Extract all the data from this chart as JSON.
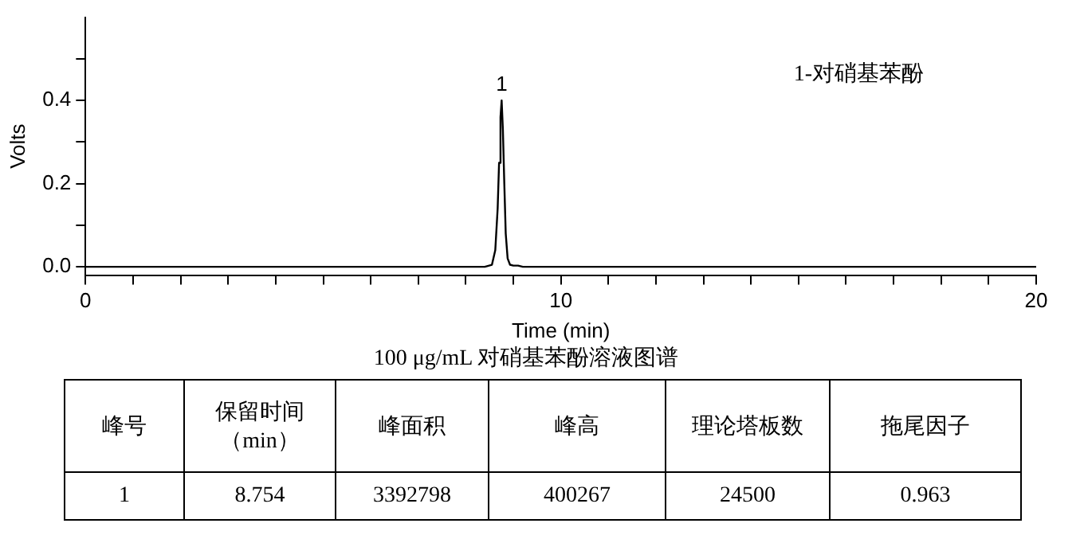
{
  "chart_data": {
    "type": "line",
    "xlabel": "Time (min)",
    "ylabel": "Volts",
    "x": [
      0,
      2,
      4,
      6,
      8,
      8.4,
      8.55,
      8.62,
      8.67,
      8.7,
      8.73,
      8.754,
      8.78,
      8.81,
      8.84,
      8.88,
      8.93,
      9.0,
      9.1,
      9.2,
      12,
      16,
      20
    ],
    "series": [
      {
        "color": "#000000",
        "values": [
          0,
          0,
          0,
          0,
          0,
          0,
          0.005,
          0.04,
          0.14,
          0.25,
          0.36,
          0.4,
          0.33,
          0.2,
          0.08,
          0.02,
          0.005,
          0.003,
          0.003,
          0,
          0,
          0,
          0
        ]
      }
    ],
    "xlim": [
      0,
      20
    ],
    "xticks": [
      0,
      {
        "value": 1,
        "label": null
      },
      {
        "value": 2,
        "label": null
      },
      {
        "value": 3,
        "label": null
      },
      {
        "value": 4,
        "label": null
      },
      {
        "value": 5,
        "label": null
      },
      {
        "value": 6,
        "label": null
      },
      {
        "value": 7,
        "label": null
      },
      {
        "value": 8,
        "label": null
      },
      {
        "value": 9,
        "label": null
      },
      10,
      {
        "value": 11,
        "label": null
      },
      {
        "value": 12,
        "label": null
      },
      {
        "value": 13,
        "label": null
      },
      {
        "value": 14,
        "label": null
      },
      {
        "value": 15,
        "label": null
      },
      {
        "value": 16,
        "label": null
      },
      {
        "value": 17,
        "label": null
      },
      {
        "value": 18,
        "label": null
      },
      {
        "value": 19,
        "label": null
      },
      20
    ],
    "ylim": [
      -0.02,
      0.6
    ],
    "yticks": [
      {
        "value": 0,
        "label": "0.0"
      },
      {
        "value": 0.1,
        "label": null
      },
      0.2,
      {
        "value": 0.3,
        "label": null
      },
      0.4,
      {
        "value": 0.5,
        "label": null
      }
    ],
    "grid": false,
    "legend": false,
    "marker": "none",
    "line_style": "solid",
    "annotations": [
      {
        "text": "1",
        "x": 8.754,
        "y": 0.4
      },
      "1-对硝基苯酚",
      "100 μg/mL 对硝基苯酚溶液图谱",
      "峰号",
      "保留时间（min）",
      "峰面积",
      "峰高",
      "理论塔板数",
      "拖尾因子",
      "1",
      "8.754",
      "3392798",
      "400267",
      "24500",
      "0.963"
    ]
  }
}
